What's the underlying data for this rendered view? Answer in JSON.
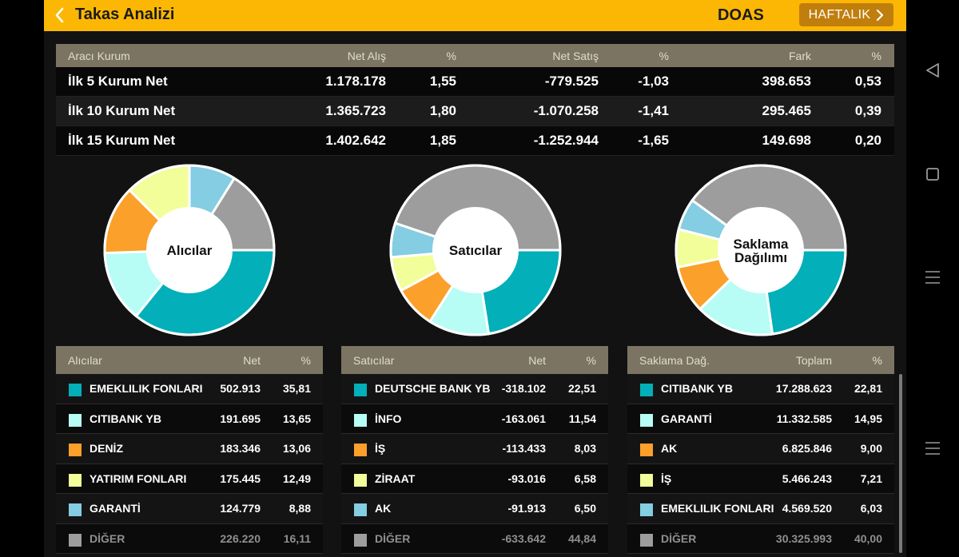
{
  "header": {
    "title": "Takas Analizi",
    "symbol": "DOAS",
    "period_button": "HAFTALIK"
  },
  "summary": {
    "columns": [
      "Aracı Kurum",
      "Net Alış",
      "%",
      "Net Satış",
      "%",
      "Fark",
      "%"
    ],
    "rows": [
      [
        "İlk 5 Kurum Net",
        "1.178.178",
        "1,55",
        "-779.525",
        "-1,03",
        "398.653",
        "0,53"
      ],
      [
        "İlk 10 Kurum Net",
        "1.365.723",
        "1,80",
        "-1.070.258",
        "-1,41",
        "295.465",
        "0,39"
      ],
      [
        "İlk 15 Kurum Net",
        "1.402.642",
        "1,85",
        "-1.252.944",
        "-1,65",
        "149.698",
        "0,20"
      ]
    ]
  },
  "colors": {
    "teal": "#03afb8",
    "light_cyan": "#b8fcf6",
    "orange": "#fba02a",
    "light_yellow": "#f1fe99",
    "light_blue": "#84cde2",
    "gray": "#9d9d9d",
    "header": "#fbb704"
  },
  "pies": {
    "buyers": {
      "label": "Alıcılar",
      "slices": [
        {
          "value": 35.81,
          "color": "#03afb8"
        },
        {
          "value": 13.65,
          "color": "#b8fcf6"
        },
        {
          "value": 13.06,
          "color": "#fba02a"
        },
        {
          "value": 12.49,
          "color": "#f1fe99"
        },
        {
          "value": 8.88,
          "color": "#84cde2"
        },
        {
          "value": 16.11,
          "color": "#9d9d9d"
        }
      ]
    },
    "sellers": {
      "label": "Satıcılar",
      "slices": [
        {
          "value": 22.51,
          "color": "#03afb8"
        },
        {
          "value": 11.54,
          "color": "#b8fcf6"
        },
        {
          "value": 8.03,
          "color": "#fba02a"
        },
        {
          "value": 6.58,
          "color": "#f1fe99"
        },
        {
          "value": 6.5,
          "color": "#84cde2"
        },
        {
          "value": 44.84,
          "color": "#9d9d9d"
        }
      ]
    },
    "custody": {
      "label_line1": "Saklama",
      "label_line2": "Dağılımı",
      "slices": [
        {
          "value": 22.81,
          "color": "#03afb8"
        },
        {
          "value": 14.95,
          "color": "#b8fcf6"
        },
        {
          "value": 9.0,
          "color": "#fba02a"
        },
        {
          "value": 7.21,
          "color": "#f1fe99"
        },
        {
          "value": 6.03,
          "color": "#84cde2"
        },
        {
          "value": 40.0,
          "color": "#9d9d9d"
        }
      ]
    }
  },
  "buyers_table": {
    "headers": [
      "Alıcılar",
      "Net",
      "%"
    ],
    "rows": [
      {
        "name": "EMEKLILIK FONLARI",
        "net": "502.913",
        "pct": "35,81",
        "color": "#03afb8"
      },
      {
        "name": "CITIBANK YB",
        "net": "191.695",
        "pct": "13,65",
        "color": "#b8fcf6"
      },
      {
        "name": "DENİZ",
        "net": "183.346",
        "pct": "13,06",
        "color": "#fba02a"
      },
      {
        "name": "YATIRIM FONLARI",
        "net": "175.445",
        "pct": "12,49",
        "color": "#f1fe99"
      },
      {
        "name": "GARANTİ",
        "net": "124.779",
        "pct": "8,88",
        "color": "#84cde2"
      },
      {
        "name": "DİĞER",
        "net": "226.220",
        "pct": "16,11",
        "color": "#9d9d9d"
      }
    ]
  },
  "sellers_table": {
    "headers": [
      "Satıcılar",
      "Net",
      "%"
    ],
    "rows": [
      {
        "name": "DEUTSCHE BANK YB",
        "net": "-318.102",
        "pct": "22,51",
        "color": "#03afb8"
      },
      {
        "name": "İNFO",
        "net": "-163.061",
        "pct": "11,54",
        "color": "#b8fcf6"
      },
      {
        "name": "İŞ",
        "net": "-113.433",
        "pct": "8,03",
        "color": "#fba02a"
      },
      {
        "name": "ZİRAAT",
        "net": "-93.016",
        "pct": "6,58",
        "color": "#f1fe99"
      },
      {
        "name": "AK",
        "net": "-91.913",
        "pct": "6,50",
        "color": "#84cde2"
      },
      {
        "name": "DİĞER",
        "net": "-633.642",
        "pct": "44,84",
        "color": "#9d9d9d"
      }
    ]
  },
  "custody_table": {
    "headers": [
      "Saklama Dağ.",
      "Toplam",
      "%"
    ],
    "rows": [
      {
        "name": "CITIBANK YB",
        "net": "17.288.623",
        "pct": "22,81",
        "color": "#03afb8"
      },
      {
        "name": "GARANTİ",
        "net": "11.332.585",
        "pct": "14,95",
        "color": "#b8fcf6"
      },
      {
        "name": "AK",
        "net": "6.825.846",
        "pct": "9,00",
        "color": "#fba02a"
      },
      {
        "name": "İŞ",
        "net": "5.466.243",
        "pct": "7,21",
        "color": "#f1fe99"
      },
      {
        "name": "EMEKLILIK FONLARI",
        "net": "4.569.520",
        "pct": "6,03",
        "color": "#84cde2"
      },
      {
        "name": "DİĞER",
        "net": "30.325.993",
        "pct": "40,00",
        "color": "#9d9d9d"
      }
    ]
  }
}
